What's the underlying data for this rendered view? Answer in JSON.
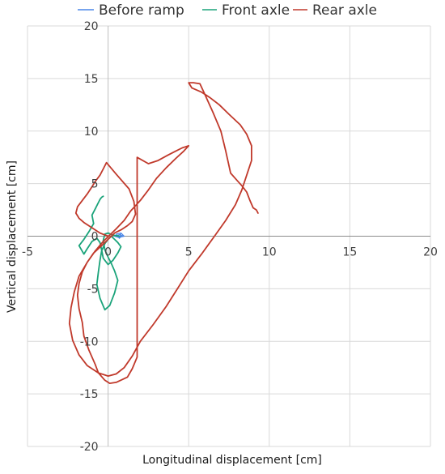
{
  "chart_data": {
    "type": "line",
    "xlabel": "Longitudinal displacement [cm]",
    "ylabel": "Vertical displacement [cm]",
    "xlim": [
      -5,
      20
    ],
    "ylim": [
      -20,
      20
    ],
    "xticks": [
      -5,
      0,
      5,
      10,
      15,
      20
    ],
    "yticks": [
      -20,
      -15,
      -10,
      -5,
      0,
      5,
      10,
      15,
      20
    ],
    "grid": true,
    "legend_position": "top",
    "series": [
      {
        "name": "Before ramp",
        "color": "#4a86e8",
        "x": [
          0.4,
          0.6,
          0.8,
          0.7,
          1.0,
          0.8,
          0.5,
          0.7,
          0.9,
          0.6,
          0.4
        ],
        "y": [
          0.0,
          0.1,
          0.2,
          -0.1,
          0.0,
          0.3,
          0.2,
          -0.2,
          0.1,
          -0.1,
          0.0
        ]
      },
      {
        "name": "Front axle",
        "color": "#1aa37a",
        "x": [
          -0.3,
          -0.4,
          -0.5,
          -0.6,
          -0.8,
          -1.0,
          -0.9,
          -1.2,
          -1.5,
          -1.8,
          -1.5,
          -1.3,
          -1.0,
          -0.7,
          -0.5,
          -0.4,
          -0.3,
          0.0,
          0.3,
          0.6,
          0.8,
          0.6,
          0.4,
          0.2,
          0.0,
          -0.2,
          -0.4,
          -0.5,
          -0.6,
          -0.7,
          -0.5,
          -0.2,
          0.1,
          0.4,
          0.6,
          0.4,
          0.2,
          0.0,
          -0.2,
          -0.3,
          -0.2,
          0.0,
          0.3,
          0.7
        ],
        "y": [
          3.8,
          3.7,
          3.5,
          3.2,
          2.6,
          2.0,
          1.2,
          0.4,
          -0.3,
          -0.9,
          -1.7,
          -1.2,
          -0.5,
          -0.2,
          -0.6,
          -1.3,
          -2.1,
          -2.7,
          -2.3,
          -1.6,
          -1.0,
          -0.6,
          -0.3,
          0.0,
          -0.3,
          -0.7,
          -1.4,
          -2.3,
          -3.4,
          -4.6,
          -5.9,
          -7.0,
          -6.6,
          -5.4,
          -4.2,
          -3.3,
          -2.6,
          -2.0,
          -1.3,
          -0.4,
          0.2,
          0.3,
          0.1,
          0.0
        ]
      },
      {
        "name": "Rear axle",
        "color": "#c0392b",
        "x": [
          0.0,
          -0.5,
          -1.0,
          -1.5,
          -1.8,
          -2.0,
          -1.9,
          -1.6,
          -1.3,
          -1.0,
          -0.8,
          -0.5,
          -0.3,
          -0.1,
          0.5,
          1.3,
          1.6,
          1.7,
          1.5,
          1.2,
          0.8,
          0.4,
          0.0,
          -0.4,
          -0.9,
          -1.3,
          -1.6,
          -1.8,
          -1.9,
          -1.8,
          -1.6,
          -1.5,
          -1.2,
          -0.8,
          -0.6,
          -0.2,
          0.1,
          0.5,
          1.2,
          1.5,
          1.8,
          1.8,
          1.8,
          1.8,
          2.5,
          3.1,
          3.7,
          4.2,
          4.6,
          4.8,
          5.0,
          4.7,
          4.2,
          3.6,
          3.0,
          2.5,
          2.0,
          1.4,
          1.0,
          0.5,
          0.1,
          -0.3,
          -0.8,
          -1.3,
          -1.8,
          -2.1,
          -2.3,
          -2.4,
          -2.2,
          -1.8,
          -1.3,
          -0.6,
          0.0,
          0.5,
          1.0,
          1.5,
          2.0,
          2.8,
          3.6,
          4.3,
          5.0,
          5.8,
          6.6,
          7.3,
          7.9,
          8.3,
          8.6,
          8.9,
          8.9,
          8.6,
          8.2,
          7.5,
          6.9,
          6.3,
          5.8,
          5.2,
          5.0,
          5.3,
          5.7,
          6.0,
          6.5,
          7.0,
          7.3,
          7.6,
          8.0,
          8.3,
          8.6,
          8.8,
          9.0,
          9.2,
          9.3
        ],
        "y": [
          0.0,
          0.3,
          0.8,
          1.3,
          1.7,
          2.2,
          2.8,
          3.4,
          4.0,
          4.7,
          5.2,
          5.8,
          6.4,
          7.0,
          5.9,
          4.5,
          3.3,
          2.1,
          1.4,
          1.0,
          0.6,
          0.3,
          -0.3,
          -0.9,
          -1.6,
          -2.5,
          -3.4,
          -4.5,
          -5.6,
          -6.9,
          -8.2,
          -9.5,
          -10.8,
          -12.2,
          -13.0,
          -13.7,
          -14.0,
          -13.9,
          -13.4,
          -12.6,
          -11.5,
          -10.3,
          -8.0,
          7.5,
          6.9,
          7.2,
          7.7,
          8.1,
          8.4,
          8.5,
          8.6,
          8.1,
          7.4,
          6.5,
          5.5,
          4.4,
          3.4,
          2.4,
          1.5,
          0.7,
          0.1,
          -0.5,
          -1.4,
          -2.5,
          -3.8,
          -5.3,
          -6.8,
          -8.3,
          -9.9,
          -11.3,
          -12.3,
          -13.0,
          -13.3,
          -13.1,
          -12.5,
          -11.4,
          -10.0,
          -8.4,
          -6.7,
          -5.0,
          -3.3,
          -1.7,
          0.0,
          1.5,
          3.0,
          4.4,
          5.8,
          7.2,
          8.6,
          9.7,
          10.6,
          11.6,
          12.5,
          13.2,
          13.7,
          14.1,
          14.6,
          14.6,
          14.5,
          13.5,
          11.8,
          10.0,
          8.1,
          6.0,
          5.3,
          4.8,
          4.2,
          3.4,
          2.7,
          2.5,
          2.2
        ]
      }
    ]
  }
}
